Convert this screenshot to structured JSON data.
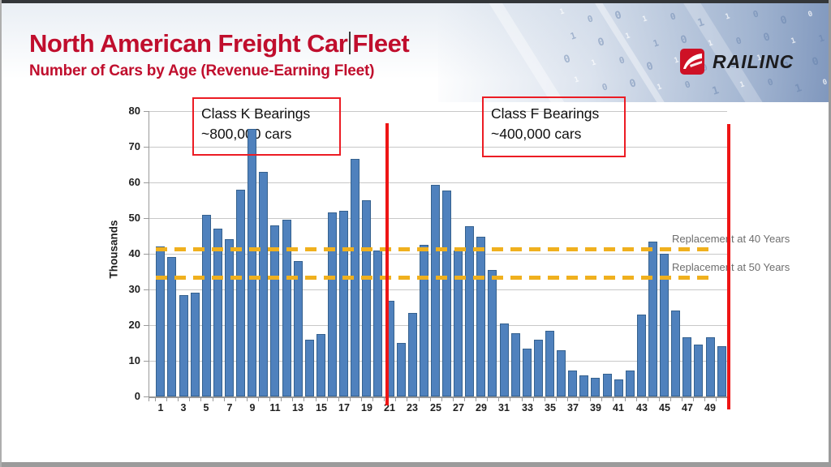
{
  "slide": {
    "title_before_caret": "North American Freight Car",
    "title_after_caret": "Fleet",
    "subtitle": "Number of Cars by Age (Revenue-Earning Fleet)",
    "title_color": "#c00e2d"
  },
  "logo": {
    "text": "RAILINC",
    "icon_color": "#ce1126"
  },
  "decor": {
    "binary_text": "1 0 0 1 0 1 1 0 0 0 1 0 1 1 0 1 0 0 1 1 0 1 0 0 1 0 0 1 1 0 1 0 0 1 0 1 1 0 1 0"
  },
  "annotations": {
    "class_k": {
      "line1": "Class K Bearings",
      "line2": "~800,000 cars"
    },
    "class_f": {
      "line1": "Class F Bearings",
      "line2": "~400,000 cars"
    },
    "replacement_40": "Replacement at 40 Years",
    "replacement_50": "Replacement at 50 Years"
  },
  "chart_data": {
    "type": "bar",
    "title": "",
    "xlabel": "",
    "ylabel": "Thousands",
    "ylim": [
      0,
      80
    ],
    "ytick_interval": 10,
    "ytick_labels": [
      "0",
      "10",
      "20",
      "30",
      "40",
      "50",
      "60",
      "70",
      "80"
    ],
    "xtick_labels": [
      "1",
      "3",
      "5",
      "7",
      "9",
      "11",
      "13",
      "15",
      "17",
      "19",
      "21",
      "23",
      "25",
      "27",
      "29",
      "31",
      "33",
      "35",
      "37",
      "39",
      "41",
      "43",
      "45",
      "47",
      "49"
    ],
    "x": [
      1,
      2,
      3,
      4,
      5,
      6,
      7,
      8,
      9,
      10,
      11,
      12,
      13,
      14,
      15,
      16,
      17,
      18,
      19,
      20,
      21,
      22,
      23,
      24,
      25,
      26,
      27,
      28,
      29,
      30,
      31,
      32,
      33,
      34,
      35,
      36,
      37,
      38,
      39,
      40,
      41,
      42,
      43,
      44,
      45,
      46,
      47,
      48,
      49,
      50
    ],
    "values": [
      42,
      39,
      28.5,
      29,
      51,
      47,
      44,
      58,
      75,
      63,
      48,
      49.5,
      38,
      16,
      17.5,
      51.5,
      52,
      66.5,
      55,
      41,
      26.8,
      15,
      23.5,
      42.5,
      59.3,
      57.7,
      41,
      47.8,
      44.8,
      35.5,
      20.5,
      17.8,
      13.5,
      15.8,
      18.3,
      13,
      7.2,
      5.8,
      5.2,
      6.3,
      4.8,
      7.3,
      23,
      43.5,
      40,
      24,
      16.5,
      14.5,
      16.5,
      14
    ],
    "bar_color": "#4f81bd",
    "bar_border_color": "#35618e",
    "gridline_color": "#c8c8c8",
    "grid": true,
    "legend": "none",
    "reference_lines": [
      {
        "y": 41,
        "style": "dashed",
        "color": "#f0b01e",
        "label": "Replacement at 40 Years"
      },
      {
        "y": 33,
        "style": "dashed",
        "color": "#f0b01e",
        "label": "Replacement at 50 Years"
      }
    ],
    "vertical_markers": [
      {
        "x": 21,
        "color": "#ee1515"
      },
      {
        "x": 50.9,
        "color": "#ee1515"
      }
    ]
  }
}
